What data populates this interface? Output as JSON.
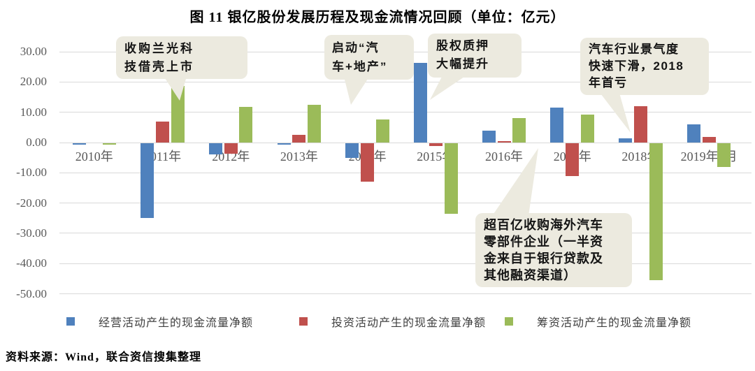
{
  "title": "图 11  银亿股份发展历程及现金流情况回顾（单位：亿元）",
  "source": "资料来源：Wind，联合资信搜集整理",
  "colors": {
    "operating_blue": "#4F81BD",
    "investing_red": "#C0504D",
    "financing_green": "#9BBB59",
    "callout_bg": "#ECEADF",
    "gridline": "#D9D9D9",
    "axis_label": "#595959",
    "legend_text": "#404040"
  },
  "chart_data": {
    "type": "bar",
    "title": "图 11  银亿股份发展历程及现金流情况回顾（单位：亿元）",
    "unit": "亿元",
    "categories": [
      "2010年",
      "2011年",
      "2012年",
      "2013年",
      "2014年",
      "2015年",
      "2016年",
      "2017年",
      "2018年",
      "2019年9月"
    ],
    "series": [
      {
        "key": "operating",
        "name": "经营活动产生的现金流量净额",
        "color": "#4F81BD",
        "values": [
          -0.5,
          -24.8,
          -3.7,
          -0.3,
          -4.9,
          26.4,
          4.0,
          11.5,
          1.4,
          6.0
        ]
      },
      {
        "key": "investing",
        "name": "投资活动产生的现金流量净额",
        "color": "#C0504D",
        "values": [
          0.0,
          6.9,
          -3.5,
          2.6,
          -12.8,
          -1.0,
          0.5,
          -10.9,
          12.1,
          1.9
        ]
      },
      {
        "key": "financing",
        "name": "筹资活动产生的现金流量净额",
        "color": "#9BBB59",
        "values": [
          -0.4,
          18.6,
          11.8,
          12.4,
          7.7,
          -23.4,
          8.1,
          9.3,
          -45.2,
          -7.9
        ]
      }
    ],
    "ylim": [
      -50,
      30
    ],
    "y_ticks": [
      30,
      20,
      10,
      0,
      -10,
      -20,
      -30,
      -40,
      -50
    ],
    "grid": true,
    "legend_position": "bottom",
    "annotations": [
      {
        "target": "2011年",
        "text": "收购兰光科技借壳上市",
        "display": "收购兰光科\n技借壳上市"
      },
      {
        "target": "2014年",
        "text": "启动“汽车+地产”",
        "display": "启动“汽\n车+地产”"
      },
      {
        "target": "2015年",
        "text": "股权质押大幅提升",
        "display": "股权质押\n大幅提升"
      },
      {
        "target": "2018年",
        "text": "汽车行业景气度快速下滑，2018年首亏",
        "display": "汽车行业景气度\n快速下滑，2018\n年首亏"
      },
      {
        "target": "2017年",
        "text": "超百亿收购海外汽车零部件企业（一半资金来自于银行贷款及其他融资渠道）",
        "display": "超百亿收购海外汽车\n零部件企业（一半资\n金来自于银行贷款及\n其他融资渠道）"
      }
    ]
  }
}
